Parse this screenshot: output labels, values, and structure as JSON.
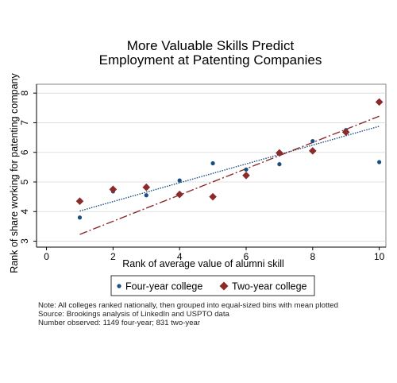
{
  "chart_data": {
    "type": "scatter",
    "title": [
      "More Valuable Skills Predict",
      "Employment at Patenting Companies"
    ],
    "xlabel": "Rank of average value of alumni skill",
    "ylabel": "Rank of share working for patenting company",
    "xlim": [
      -0.3,
      10.2
    ],
    "ylim": [
      2.8,
      8.3
    ],
    "xticks": [
      "0",
      "2",
      "4",
      "6",
      "8",
      "10"
    ],
    "yticks": [
      "3",
      "4",
      "5",
      "6",
      "7",
      "8"
    ],
    "grid": "horizontal",
    "legend_position": "bottom",
    "series": [
      {
        "name": "Four-year college",
        "color": "#1a4d80",
        "marker": "circle",
        "x": [
          1,
          2,
          3,
          4,
          5,
          6,
          7,
          8,
          9,
          10
        ],
        "y": [
          3.8,
          4.68,
          4.55,
          5.05,
          5.63,
          5.42,
          5.6,
          6.38,
          6.75,
          5.67
        ],
        "fit": {
          "x": [
            1,
            10
          ],
          "y": [
            4.02,
            6.88
          ],
          "style": "dotted",
          "color": "#1a4d80"
        }
      },
      {
        "name": "Two-year college",
        "color": "#8b2a2a",
        "marker": "diamond",
        "x": [
          1,
          2,
          3,
          4,
          5,
          6,
          7,
          8,
          9,
          10
        ],
        "y": [
          4.35,
          4.75,
          4.82,
          4.58,
          4.5,
          5.22,
          5.98,
          6.05,
          6.68,
          7.7
        ],
        "fit": {
          "x": [
            1,
            10
          ],
          "y": [
            3.23,
            7.22
          ],
          "style": "dashdot",
          "color": "#8b2a2a"
        }
      }
    ]
  },
  "notes": [
    "Note: All colleges ranked nationally, then grouped into equal-sized bins with mean plotted",
    "Source: Brookings analysis of LinkedIn and USPTO data",
    "Number observed: 1149 four-year; 831 two-year"
  ]
}
